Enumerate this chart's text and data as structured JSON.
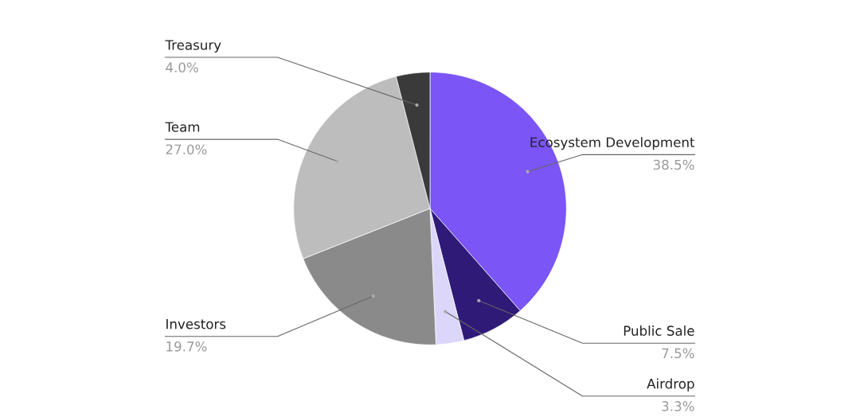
{
  "chart_data": {
    "type": "pie",
    "categories": [
      "Ecosystem Development",
      "Public Sale",
      "Airdrop",
      "Investors",
      "Team",
      "Treasury"
    ],
    "values": [
      38.5,
      7.5,
      3.3,
      19.7,
      27.0,
      4.0
    ],
    "colors": [
      "#7b55f5",
      "#2f1a78",
      "#dcd6fb",
      "#8a8a8a",
      "#bdbdbd",
      "#3a3a3a"
    ],
    "value_labels": [
      "38.5%",
      "7.5%",
      "3.3%",
      "19.7%",
      "27.0%",
      "4.0%"
    ],
    "legend": false
  }
}
